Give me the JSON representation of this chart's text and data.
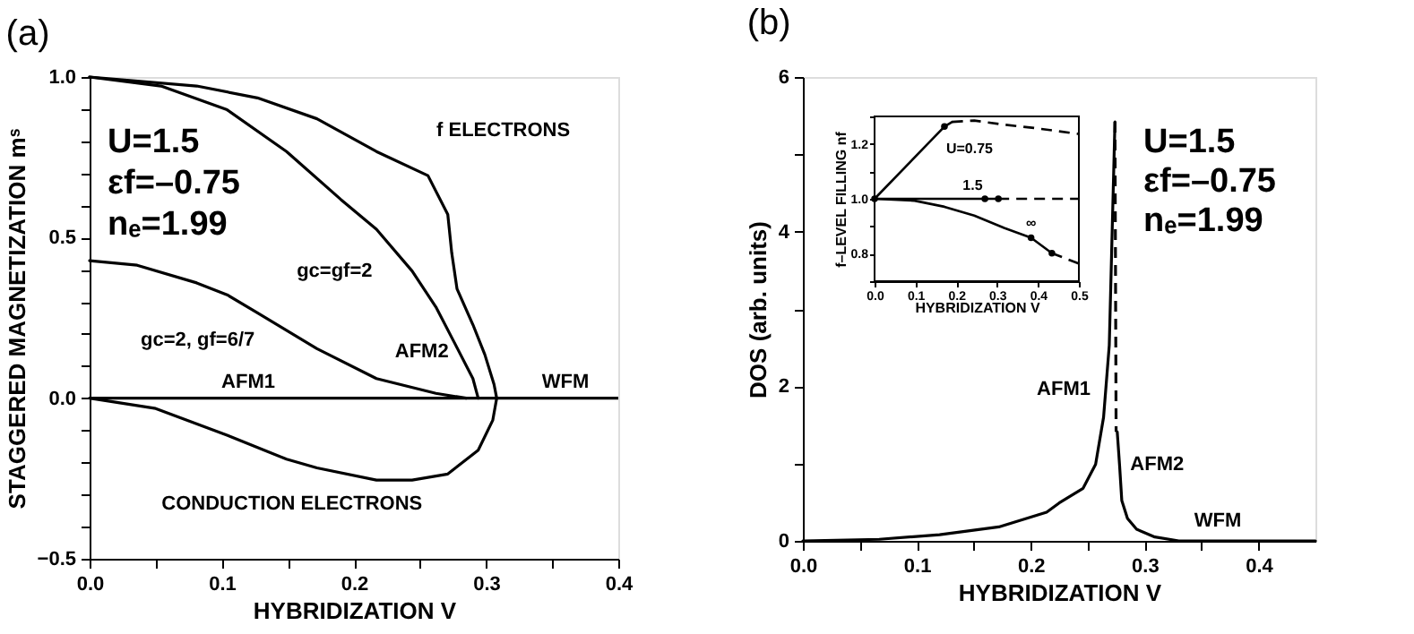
{
  "chart_data": [
    {
      "type": "line",
      "title": "(a)",
      "xlabel": "HYBRIDIZATION  V",
      "ylabel": "STAGGERED MAGNETIZATION  mˢ",
      "xlim": [
        0,
        0.4
      ],
      "ylim": [
        -0.5,
        1.0
      ],
      "xticks": [
        {
          "value": 0,
          "label": "0.0"
        },
        {
          "value": 0.05,
          "label": null
        },
        0.1,
        {
          "value": 0.15,
          "label": null
        },
        0.2,
        {
          "value": 0.25,
          "label": null
        },
        0.3,
        {
          "value": 0.35,
          "label": null
        },
        0.4
      ],
      "yticks": [
        {
          "value": -0.5,
          "label": "−0.5"
        },
        {
          "value": -0.4,
          "label": null
        },
        {
          "value": -0.3,
          "label": null
        },
        {
          "value": -0.2,
          "label": null
        },
        {
          "value": -0.1,
          "label": null
        },
        {
          "value": 0,
          "label": "0.0"
        },
        {
          "value": 0.1,
          "label": null
        },
        {
          "value": 0.2,
          "label": null
        },
        {
          "value": 0.3,
          "label": null
        },
        {
          "value": 0.4,
          "label": null
        },
        0.5,
        {
          "value": 0.6,
          "label": null
        },
        {
          "value": 0.7,
          "label": null
        },
        {
          "value": 0.8,
          "label": null
        },
        {
          "value": 0.9,
          "label": null
        },
        {
          "value": 1,
          "label": "1.0"
        }
      ],
      "grid": false,
      "line_style": "solid",
      "series": [
        {
          "color": "#000000",
          "x": [
            0,
            0.081,
            0.127,
            0.172,
            0.217,
            0.256,
            0.271,
            0.274,
            0.278,
            0.29,
            0.299,
            0.306,
            0.308,
            0.305,
            0.294,
            0.271,
            0.244,
            0.217,
            0.172,
            0.149,
            0.104,
            0.05,
            0
          ],
          "values": [
            1.0,
            0.972,
            0.935,
            0.87,
            0.768,
            0.693,
            0.572,
            0.452,
            0.34,
            0.229,
            0.136,
            0.043,
            0,
            -0.069,
            -0.162,
            -0.236,
            -0.255,
            -0.255,
            -0.217,
            -0.19,
            -0.115,
            -0.032,
            0
          ]
        },
        {
          "color": "#000000",
          "x": [
            0,
            0.054,
            0.104,
            0.149,
            0.19,
            0.217,
            0.244,
            0.262,
            0.276,
            0.29,
            0.294
          ],
          "values": [
            1.0,
            0.972,
            0.898,
            0.768,
            0.619,
            0.526,
            0.396,
            0.284,
            0.173,
            0.061,
            0
          ]
        },
        {
          "color": "#000000",
          "x": [
            0,
            0.036,
            0.081,
            0.104,
            0.127,
            0.172,
            0.217,
            0.262,
            0.285
          ],
          "values": [
            0.428,
            0.414,
            0.359,
            0.322,
            0.266,
            0.154,
            0.061,
            0.015,
            0
          ]
        }
      ],
      "ref_lines": [
        {
          "axis": "y",
          "value": 0,
          "color": "#000000"
        }
      ],
      "annotations": [
        "U=1.5",
        "εf=–0.75",
        "nₑ=1.99",
        {
          "text": "f ELECTRONS",
          "x": 0.256,
          "y": 0.693
        },
        {
          "text": "gc=gf=2",
          "x": 0.226,
          "y": 0.517
        },
        {
          "text": "gc=2, gf=6/7",
          "x": 0.113,
          "y": 0.331
        },
        {
          "text": "AFM1",
          "x": 0.12,
          "y": 0
        },
        {
          "text": "AFM2",
          "x": 0.292,
          "y": 0
        },
        {
          "text": "WFM",
          "x": 0.36,
          "y": 0
        },
        {
          "text": "CONDUCTION ELECTRONS",
          "x": 0.149,
          "y": -0.19
        }
      ]
    },
    {
      "type": "line",
      "title": "(b)",
      "xlabel": "HYBRIDIZATION  V",
      "ylabel": "DOS (arb. units)",
      "xlim": [
        0,
        0.45
      ],
      "ylim": [
        0,
        6
      ],
      "xticks": [
        {
          "value": 0,
          "label": "0.0"
        },
        {
          "value": 0.05,
          "label": null
        },
        0.1,
        {
          "value": 0.15,
          "label": null
        },
        0.2,
        {
          "value": 0.25,
          "label": null
        },
        0.3,
        {
          "value": 0.35,
          "label": null
        },
        0.4
      ],
      "yticks": [
        0,
        {
          "value": 1,
          "label": null
        },
        2,
        {
          "value": 3,
          "label": null
        },
        4,
        {
          "value": 5,
          "label": null
        },
        6
      ],
      "grid": false,
      "series": [
        {
          "color": "#000000",
          "line_style": "solid",
          "x": [
            0,
            0.067,
            0.12,
            0.172,
            0.214,
            0.225,
            0.246,
            0.257,
            0.264,
            0.269,
            0.271,
            0.273,
            0.274
          ],
          "values": [
            0,
            0.02,
            0.08,
            0.18,
            0.37,
            0.49,
            0.68,
            0.99,
            1.6,
            2.53,
            3.69,
            4.84,
            5.42
          ]
        },
        {
          "color": "#000000",
          "line_style": "dashed",
          "x": [
            0.274,
            0.275
          ],
          "values": [
            5.42,
            1.41
          ]
        },
        {
          "color": "#000000",
          "line_style": "solid",
          "x": [
            0.276,
            0.278,
            0.28,
            0.285,
            0.293,
            0.309,
            0.33,
            0.45
          ],
          "values": [
            1.41,
            0.99,
            0.52,
            0.29,
            0.15,
            0.05,
            0,
            0
          ]
        }
      ],
      "annotations": [
        "U=1.5",
        "εf=–0.75",
        "nₑ=1.99",
        {
          "text": "AFM1",
          "x": 0.262,
          "y": 2.0
        },
        {
          "text": "AFM2",
          "x": 0.278,
          "y": 0.99
        },
        {
          "text": "WFM",
          "x": 0.38,
          "y": 0
        }
      ]
    },
    {
      "type": "line",
      "xlabel": "HYBRIDIZATION  V",
      "ylabel": "f–LEVEL FILLING  nf",
      "xlim": [
        0,
        0.5
      ],
      "ylim": [
        0.7,
        1.3
      ],
      "xticks": [
        {
          "value": 0,
          "label": "0.0"
        },
        0.1,
        0.2,
        0.3,
        0.4,
        0.5
      ],
      "yticks": [
        {
          "value": 0.7,
          "label": null
        },
        0.8,
        {
          "value": 0.9,
          "label": null
        },
        {
          "value": 1,
          "label": "1.0"
        },
        {
          "value": 1.1,
          "label": null
        },
        1.2,
        {
          "value": 1.3,
          "label": null
        }
      ],
      "grid": false,
      "series": [
        {
          "color": "#000000",
          "line_style": "solid",
          "x": [
            0,
            0.171,
            0.19
          ],
          "values": [
            1.0,
            1.263,
            1.28
          ]
        },
        {
          "color": "#000000",
          "line_style": "dashed",
          "x": [
            0.19,
            0.244,
            0.317,
            0.39,
            0.5
          ],
          "values": [
            1.28,
            1.285,
            1.27,
            1.258,
            1.236
          ]
        },
        {
          "color": "#000000",
          "line_style": "solid",
          "x": [
            0,
            0.303
          ],
          "values": [
            1.0,
            1.0
          ]
        },
        {
          "color": "#000000",
          "line_style": "dashed",
          "x": [
            0.303,
            0.5
          ],
          "values": [
            1.0,
            1.0
          ]
        },
        {
          "color": "#000000",
          "line_style": "solid",
          "x": [
            0,
            0.098,
            0.171,
            0.244,
            0.317,
            0.383,
            0.434
          ],
          "values": [
            1.0,
            0.993,
            0.971,
            0.939,
            0.894,
            0.858,
            0.802
          ]
        },
        {
          "color": "#000000",
          "line_style": "dashed",
          "x": [
            0.434,
            0.5
          ],
          "values": [
            0.802,
            0.764
          ]
        },
        {
          "type": "scatter",
          "marker": "circle",
          "color": "#000000",
          "x": [
            0,
            0.171,
            0.27,
            0.303,
            0.383,
            0.434
          ],
          "values": [
            1.0,
            1.263,
            1.0,
            1.0,
            0.858,
            0.802
          ]
        }
      ],
      "annotations": [
        {
          "text": "U=0.75",
          "x": 0.171,
          "y": 1.263
        },
        {
          "text": "1.5",
          "x": 0.24,
          "y": 1.0
        },
        {
          "text": "∞",
          "x": 0.383,
          "y": 0.858
        }
      ]
    }
  ]
}
